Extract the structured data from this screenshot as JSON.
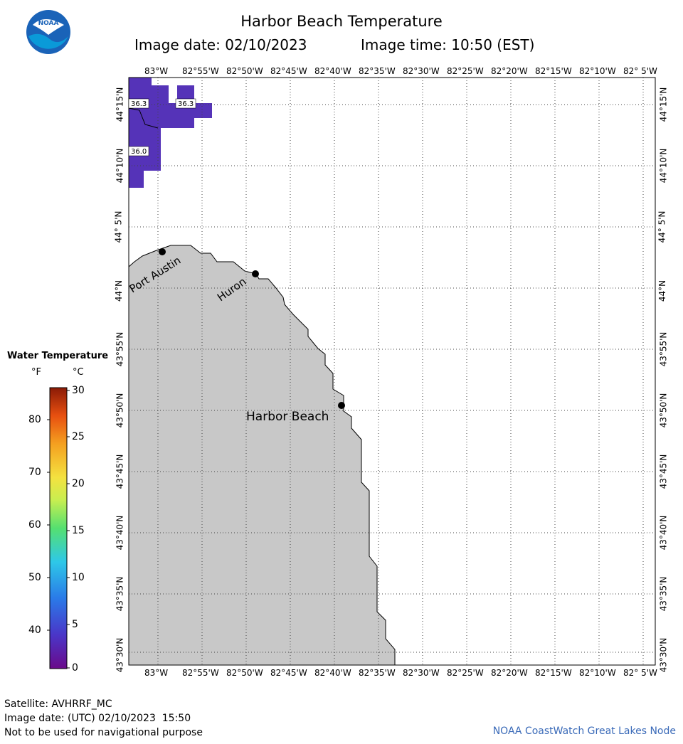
{
  "header": {
    "title": "Harbor Beach Temperature",
    "image_date": "Image date: 02/10/2023",
    "image_time": "Image time: 10:50 (EST)"
  },
  "logo": {
    "text": "NOAA"
  },
  "map": {
    "lon_labels": [
      "83°W",
      "82°55'W",
      "82°50'W",
      "82°45'W",
      "82°40'W",
      "82°35'W",
      "82°30'W",
      "82°25'W",
      "82°20'W",
      "82°15'W",
      "82°10'W",
      "82° 5'W"
    ],
    "lat_labels": [
      "44°15'N",
      "44°10'N",
      "44° 5'N",
      "44°N",
      "43°55'N",
      "43°50'N",
      "43°45'N",
      "43°40'N",
      "43°35'N",
      "43°30'N"
    ],
    "places": [
      {
        "name": "Port Austin"
      },
      {
        "name": "Huron"
      },
      {
        "name": "Harbor Beach"
      }
    ],
    "temperature_labels": [
      "36.3",
      "36.3",
      "36.0"
    ],
    "land_color": "#c8c8c8",
    "water_color": "#5533b8"
  },
  "legend": {
    "title": "Water Temperature",
    "unit_f": "°F",
    "unit_c": "°C",
    "f_ticks": [
      "80",
      "70",
      "60",
      "50",
      "40"
    ],
    "c_ticks": [
      "30",
      "25",
      "20",
      "15",
      "10",
      "5",
      "0"
    ]
  },
  "footer": {
    "satellite": "Satellite: AVHRRF_MC",
    "utc_date": "Image date: (UTC) 02/10/2023  15:50",
    "disclaimer": "Not to be used for navigational purpose",
    "credit": "NOAA CoastWatch Great Lakes Node"
  }
}
